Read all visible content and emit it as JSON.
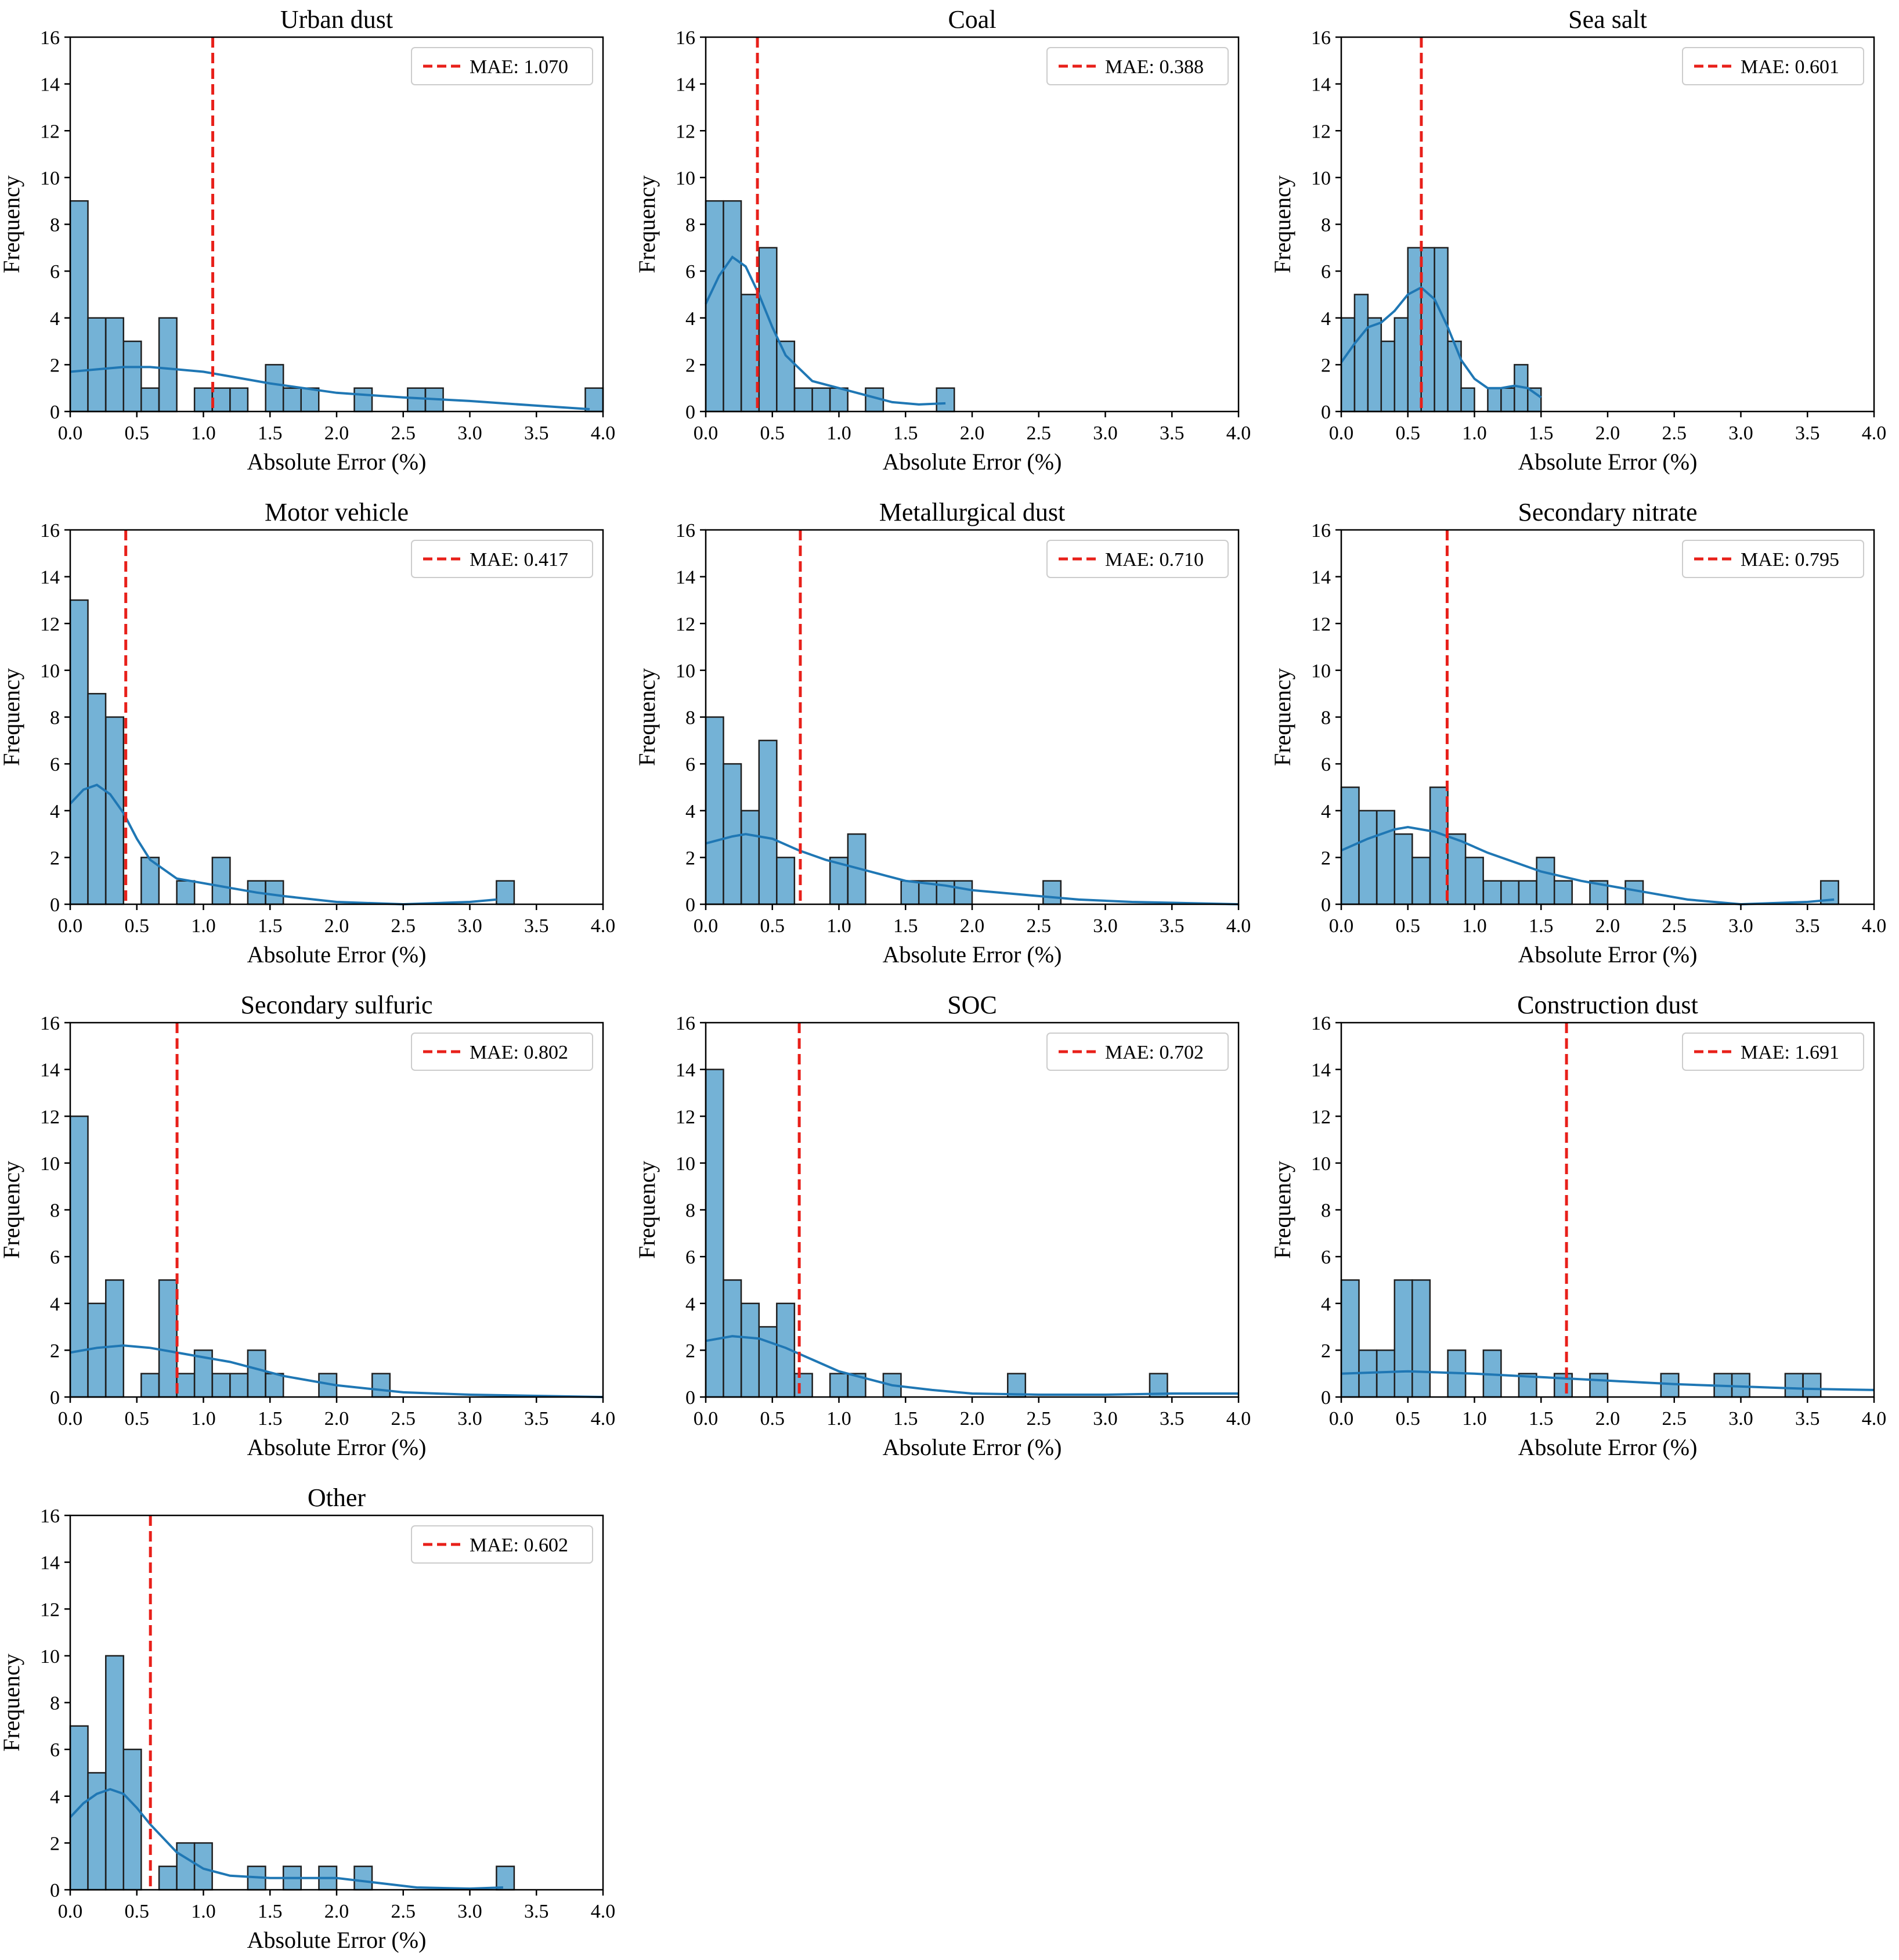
{
  "colors": {
    "bar_fill": "#74b2d6",
    "bar_edge": "#1f1f1f",
    "kde": "#1f77b4",
    "mae": "#e8201a",
    "axis": "#000000"
  },
  "chart_data": [
    {
      "type": "bar",
      "title": "Urban dust",
      "xlabel": "Absolute Error (%)",
      "ylabel": "Frequency",
      "xlim": [
        0,
        4
      ],
      "ylim": [
        0,
        16
      ],
      "bin_width": 0.133,
      "mae": 1.07,
      "legend": "MAE: 1.070",
      "legend_position": "top-right",
      "bins": [
        [
          0.0,
          9
        ],
        [
          0.133,
          4
        ],
        [
          0.267,
          4
        ],
        [
          0.4,
          3
        ],
        [
          0.533,
          1
        ],
        [
          0.667,
          4
        ],
        [
          0.933,
          1
        ],
        [
          1.067,
          1
        ],
        [
          1.2,
          1
        ],
        [
          1.467,
          2
        ],
        [
          1.6,
          1
        ],
        [
          1.733,
          1
        ],
        [
          2.133,
          1
        ],
        [
          2.533,
          1
        ],
        [
          2.667,
          1
        ],
        [
          3.867,
          1
        ]
      ],
      "kde": [
        [
          0,
          1.7
        ],
        [
          0.2,
          1.8
        ],
        [
          0.4,
          1.9
        ],
        [
          0.6,
          1.9
        ],
        [
          0.8,
          1.8
        ],
        [
          1.0,
          1.7
        ],
        [
          1.2,
          1.5
        ],
        [
          1.5,
          1.2
        ],
        [
          2.0,
          0.8
        ],
        [
          2.5,
          0.6
        ],
        [
          3.0,
          0.45
        ],
        [
          3.5,
          0.25
        ],
        [
          3.9,
          0.1
        ]
      ]
    },
    {
      "type": "bar",
      "title": "Coal",
      "xlabel": "Absolute Error (%)",
      "ylabel": "Frequency",
      "xlim": [
        0,
        4
      ],
      "ylim": [
        0,
        16
      ],
      "bin_width": 0.133,
      "mae": 0.388,
      "legend": "MAE: 0.388",
      "legend_position": "top-right",
      "bins": [
        [
          0.0,
          9
        ],
        [
          0.133,
          9
        ],
        [
          0.267,
          5
        ],
        [
          0.4,
          7
        ],
        [
          0.533,
          3
        ],
        [
          0.667,
          1
        ],
        [
          0.8,
          1
        ],
        [
          0.933,
          1
        ],
        [
          1.2,
          1
        ],
        [
          1.733,
          1
        ]
      ],
      "kde": [
        [
          0,
          4.6
        ],
        [
          0.1,
          5.8
        ],
        [
          0.2,
          6.6
        ],
        [
          0.3,
          6.2
        ],
        [
          0.4,
          5.0
        ],
        [
          0.5,
          3.6
        ],
        [
          0.6,
          2.4
        ],
        [
          0.8,
          1.3
        ],
        [
          1.0,
          1.0
        ],
        [
          1.2,
          0.7
        ],
        [
          1.4,
          0.4
        ],
        [
          1.6,
          0.3
        ],
        [
          1.8,
          0.35
        ]
      ]
    },
    {
      "type": "bar",
      "title": "Sea salt",
      "xlabel": "Absolute Error (%)",
      "ylabel": "Frequency",
      "xlim": [
        0,
        4
      ],
      "ylim": [
        0,
        16
      ],
      "bin_width": 0.1,
      "mae": 0.601,
      "legend": "MAE: 0.601",
      "legend_position": "top-right",
      "bins": [
        [
          0.0,
          4
        ],
        [
          0.1,
          5
        ],
        [
          0.2,
          4
        ],
        [
          0.3,
          3
        ],
        [
          0.4,
          4
        ],
        [
          0.5,
          7
        ],
        [
          0.6,
          7
        ],
        [
          0.7,
          7
        ],
        [
          0.8,
          3
        ],
        [
          0.9,
          1
        ],
        [
          1.1,
          1
        ],
        [
          1.2,
          1
        ],
        [
          1.3,
          2
        ],
        [
          1.4,
          1
        ]
      ],
      "kde": [
        [
          0,
          2.1
        ],
        [
          0.1,
          2.9
        ],
        [
          0.2,
          3.6
        ],
        [
          0.3,
          3.8
        ],
        [
          0.4,
          4.3
        ],
        [
          0.5,
          5.0
        ],
        [
          0.6,
          5.3
        ],
        [
          0.7,
          4.8
        ],
        [
          0.8,
          3.6
        ],
        [
          0.9,
          2.2
        ],
        [
          1.0,
          1.4
        ],
        [
          1.1,
          1.0
        ],
        [
          1.2,
          1.0
        ],
        [
          1.3,
          1.1
        ],
        [
          1.4,
          1.0
        ],
        [
          1.5,
          0.6
        ]
      ]
    },
    {
      "type": "bar",
      "title": "Motor vehicle",
      "xlabel": "Absolute Error (%)",
      "ylabel": "Frequency",
      "xlim": [
        0,
        4
      ],
      "ylim": [
        0,
        16
      ],
      "bin_width": 0.133,
      "mae": 0.417,
      "legend": "MAE: 0.417",
      "legend_position": "top-right",
      "bins": [
        [
          0.0,
          13
        ],
        [
          0.133,
          9
        ],
        [
          0.267,
          8
        ],
        [
          0.533,
          2
        ],
        [
          0.8,
          1
        ],
        [
          1.067,
          2
        ],
        [
          1.333,
          1
        ],
        [
          1.467,
          1
        ],
        [
          3.2,
          1
        ]
      ],
      "kde": [
        [
          0,
          4.3
        ],
        [
          0.1,
          4.9
        ],
        [
          0.2,
          5.1
        ],
        [
          0.3,
          4.7
        ],
        [
          0.4,
          3.9
        ],
        [
          0.5,
          2.8
        ],
        [
          0.6,
          1.9
        ],
        [
          0.8,
          1.1
        ],
        [
          1.0,
          0.9
        ],
        [
          1.2,
          0.7
        ],
        [
          1.4,
          0.5
        ],
        [
          1.6,
          0.35
        ],
        [
          2.0,
          0.1
        ],
        [
          2.5,
          0.0
        ],
        [
          3.0,
          0.1
        ],
        [
          3.2,
          0.2
        ]
      ]
    },
    {
      "type": "bar",
      "title": "Metallurgical dust",
      "xlabel": "Absolute Error (%)",
      "ylabel": "Frequency",
      "xlim": [
        0,
        4
      ],
      "ylim": [
        0,
        16
      ],
      "bin_width": 0.133,
      "mae": 0.71,
      "legend": "MAE: 0.710",
      "legend_position": "top-right",
      "bins": [
        [
          0.0,
          8
        ],
        [
          0.133,
          6
        ],
        [
          0.267,
          4
        ],
        [
          0.4,
          7
        ],
        [
          0.533,
          2
        ],
        [
          0.933,
          2
        ],
        [
          1.067,
          3
        ],
        [
          1.467,
          1
        ],
        [
          1.6,
          1
        ],
        [
          1.733,
          1
        ],
        [
          1.867,
          1
        ],
        [
          2.533,
          1
        ]
      ],
      "kde": [
        [
          0,
          2.6
        ],
        [
          0.2,
          2.9
        ],
        [
          0.3,
          3.0
        ],
        [
          0.5,
          2.8
        ],
        [
          0.7,
          2.3
        ],
        [
          0.9,
          1.9
        ],
        [
          1.1,
          1.6
        ],
        [
          1.3,
          1.3
        ],
        [
          1.5,
          1.0
        ],
        [
          1.8,
          0.8
        ],
        [
          2.0,
          0.6
        ],
        [
          2.4,
          0.4
        ],
        [
          2.8,
          0.2
        ],
        [
          3.2,
          0.1
        ],
        [
          4.0,
          0.0
        ]
      ]
    },
    {
      "type": "bar",
      "title": "Secondary nitrate",
      "xlabel": "Absolute Error (%)",
      "ylabel": "Frequency",
      "xlim": [
        0,
        4
      ],
      "ylim": [
        0,
        16
      ],
      "bin_width": 0.133,
      "mae": 0.795,
      "legend": "MAE: 0.795",
      "legend_position": "top-right",
      "bins": [
        [
          0.0,
          5
        ],
        [
          0.133,
          4
        ],
        [
          0.267,
          4
        ],
        [
          0.4,
          3
        ],
        [
          0.533,
          2
        ],
        [
          0.667,
          5
        ],
        [
          0.8,
          3
        ],
        [
          0.933,
          2
        ],
        [
          1.067,
          1
        ],
        [
          1.2,
          1
        ],
        [
          1.333,
          1
        ],
        [
          1.467,
          2
        ],
        [
          1.6,
          1
        ],
        [
          1.867,
          1
        ],
        [
          2.133,
          1
        ],
        [
          3.6,
          1
        ]
      ],
      "kde": [
        [
          0,
          2.3
        ],
        [
          0.2,
          2.8
        ],
        [
          0.4,
          3.2
        ],
        [
          0.5,
          3.3
        ],
        [
          0.7,
          3.1
        ],
        [
          0.9,
          2.7
        ],
        [
          1.1,
          2.2
        ],
        [
          1.3,
          1.8
        ],
        [
          1.5,
          1.4
        ],
        [
          1.8,
          1.0
        ],
        [
          2.0,
          0.8
        ],
        [
          2.3,
          0.5
        ],
        [
          2.6,
          0.2
        ],
        [
          3.0,
          0.0
        ],
        [
          3.5,
          0.1
        ],
        [
          3.7,
          0.2
        ]
      ]
    },
    {
      "type": "bar",
      "title": "Secondary sulfuric",
      "xlabel": "Absolute Error (%)",
      "ylabel": "Frequency",
      "xlim": [
        0,
        4
      ],
      "ylim": [
        0,
        16
      ],
      "bin_width": 0.133,
      "mae": 0.802,
      "legend": "MAE: 0.802",
      "legend_position": "top-right",
      "bins": [
        [
          0.0,
          12
        ],
        [
          0.133,
          4
        ],
        [
          0.267,
          5
        ],
        [
          0.533,
          1
        ],
        [
          0.667,
          5
        ],
        [
          0.8,
          1
        ],
        [
          0.933,
          2
        ],
        [
          1.067,
          1
        ],
        [
          1.2,
          1
        ],
        [
          1.333,
          2
        ],
        [
          1.467,
          1
        ],
        [
          1.867,
          1
        ],
        [
          2.267,
          1
        ]
      ],
      "kde": [
        [
          0,
          1.9
        ],
        [
          0.2,
          2.1
        ],
        [
          0.4,
          2.2
        ],
        [
          0.6,
          2.1
        ],
        [
          0.8,
          1.9
        ],
        [
          1.0,
          1.7
        ],
        [
          1.2,
          1.5
        ],
        [
          1.4,
          1.2
        ],
        [
          1.6,
          0.9
        ],
        [
          2.0,
          0.5
        ],
        [
          2.5,
          0.2
        ],
        [
          3.0,
          0.1
        ],
        [
          4.0,
          0.0
        ]
      ]
    },
    {
      "type": "bar",
      "title": "SOC",
      "xlabel": "Absolute Error (%)",
      "ylabel": "Frequency",
      "xlim": [
        0,
        4
      ],
      "ylim": [
        0,
        16
      ],
      "bin_width": 0.133,
      "mae": 0.702,
      "legend": "MAE: 0.702",
      "legend_position": "top-right",
      "bins": [
        [
          0.0,
          14
        ],
        [
          0.133,
          5
        ],
        [
          0.267,
          4
        ],
        [
          0.4,
          3
        ],
        [
          0.533,
          4
        ],
        [
          0.667,
          1
        ],
        [
          0.933,
          1
        ],
        [
          1.067,
          1
        ],
        [
          1.333,
          1
        ],
        [
          2.267,
          1
        ],
        [
          3.333,
          1
        ]
      ],
      "kde": [
        [
          0,
          2.4
        ],
        [
          0.2,
          2.6
        ],
        [
          0.4,
          2.5
        ],
        [
          0.6,
          2.1
        ],
        [
          0.8,
          1.6
        ],
        [
          1.0,
          1.1
        ],
        [
          1.2,
          0.8
        ],
        [
          1.4,
          0.5
        ],
        [
          1.7,
          0.3
        ],
        [
          2.0,
          0.15
        ],
        [
          2.5,
          0.1
        ],
        [
          3.0,
          0.1
        ],
        [
          3.5,
          0.15
        ],
        [
          4.0,
          0.15
        ]
      ]
    },
    {
      "type": "bar",
      "title": "Construction dust",
      "xlabel": "Absolute Error (%)",
      "ylabel": "Frequency",
      "xlim": [
        0,
        4
      ],
      "ylim": [
        0,
        16
      ],
      "bin_width": 0.133,
      "mae": 1.691,
      "legend": "MAE: 1.691",
      "legend_position": "top-right",
      "bins": [
        [
          0.0,
          5
        ],
        [
          0.133,
          2
        ],
        [
          0.267,
          2
        ],
        [
          0.4,
          5
        ],
        [
          0.533,
          5
        ],
        [
          0.8,
          2
        ],
        [
          1.067,
          2
        ],
        [
          1.333,
          1
        ],
        [
          1.6,
          1
        ],
        [
          1.867,
          1
        ],
        [
          2.4,
          1
        ],
        [
          2.8,
          1
        ],
        [
          2.933,
          1
        ],
        [
          3.333,
          1
        ],
        [
          3.467,
          1
        ]
      ],
      "kde": [
        [
          0,
          1.0
        ],
        [
          0.5,
          1.1
        ],
        [
          1.0,
          1.0
        ],
        [
          1.5,
          0.85
        ],
        [
          2.0,
          0.7
        ],
        [
          2.5,
          0.55
        ],
        [
          3.0,
          0.45
        ],
        [
          3.5,
          0.35
        ],
        [
          4.0,
          0.3
        ]
      ]
    },
    {
      "type": "bar",
      "title": "Other",
      "xlabel": "Absolute Error (%)",
      "ylabel": "Frequency",
      "xlim": [
        0,
        4
      ],
      "ylim": [
        0,
        16
      ],
      "bin_width": 0.133,
      "mae": 0.602,
      "legend": "MAE: 0.602",
      "legend_position": "top-right",
      "bins": [
        [
          0.0,
          7
        ],
        [
          0.133,
          5
        ],
        [
          0.267,
          10
        ],
        [
          0.4,
          6
        ],
        [
          0.667,
          1
        ],
        [
          0.8,
          2
        ],
        [
          0.933,
          2
        ],
        [
          1.333,
          1
        ],
        [
          1.6,
          1
        ],
        [
          1.867,
          1
        ],
        [
          2.133,
          1
        ],
        [
          3.2,
          1
        ]
      ],
      "kde": [
        [
          0,
          3.1
        ],
        [
          0.1,
          3.7
        ],
        [
          0.2,
          4.1
        ],
        [
          0.3,
          4.3
        ],
        [
          0.4,
          4.1
        ],
        [
          0.5,
          3.5
        ],
        [
          0.6,
          2.8
        ],
        [
          0.8,
          1.6
        ],
        [
          1.0,
          0.9
        ],
        [
          1.2,
          0.6
        ],
        [
          1.5,
          0.5
        ],
        [
          2.0,
          0.5
        ],
        [
          2.3,
          0.3
        ],
        [
          2.6,
          0.1
        ],
        [
          3.0,
          0.05
        ],
        [
          3.25,
          0.1
        ]
      ]
    }
  ]
}
